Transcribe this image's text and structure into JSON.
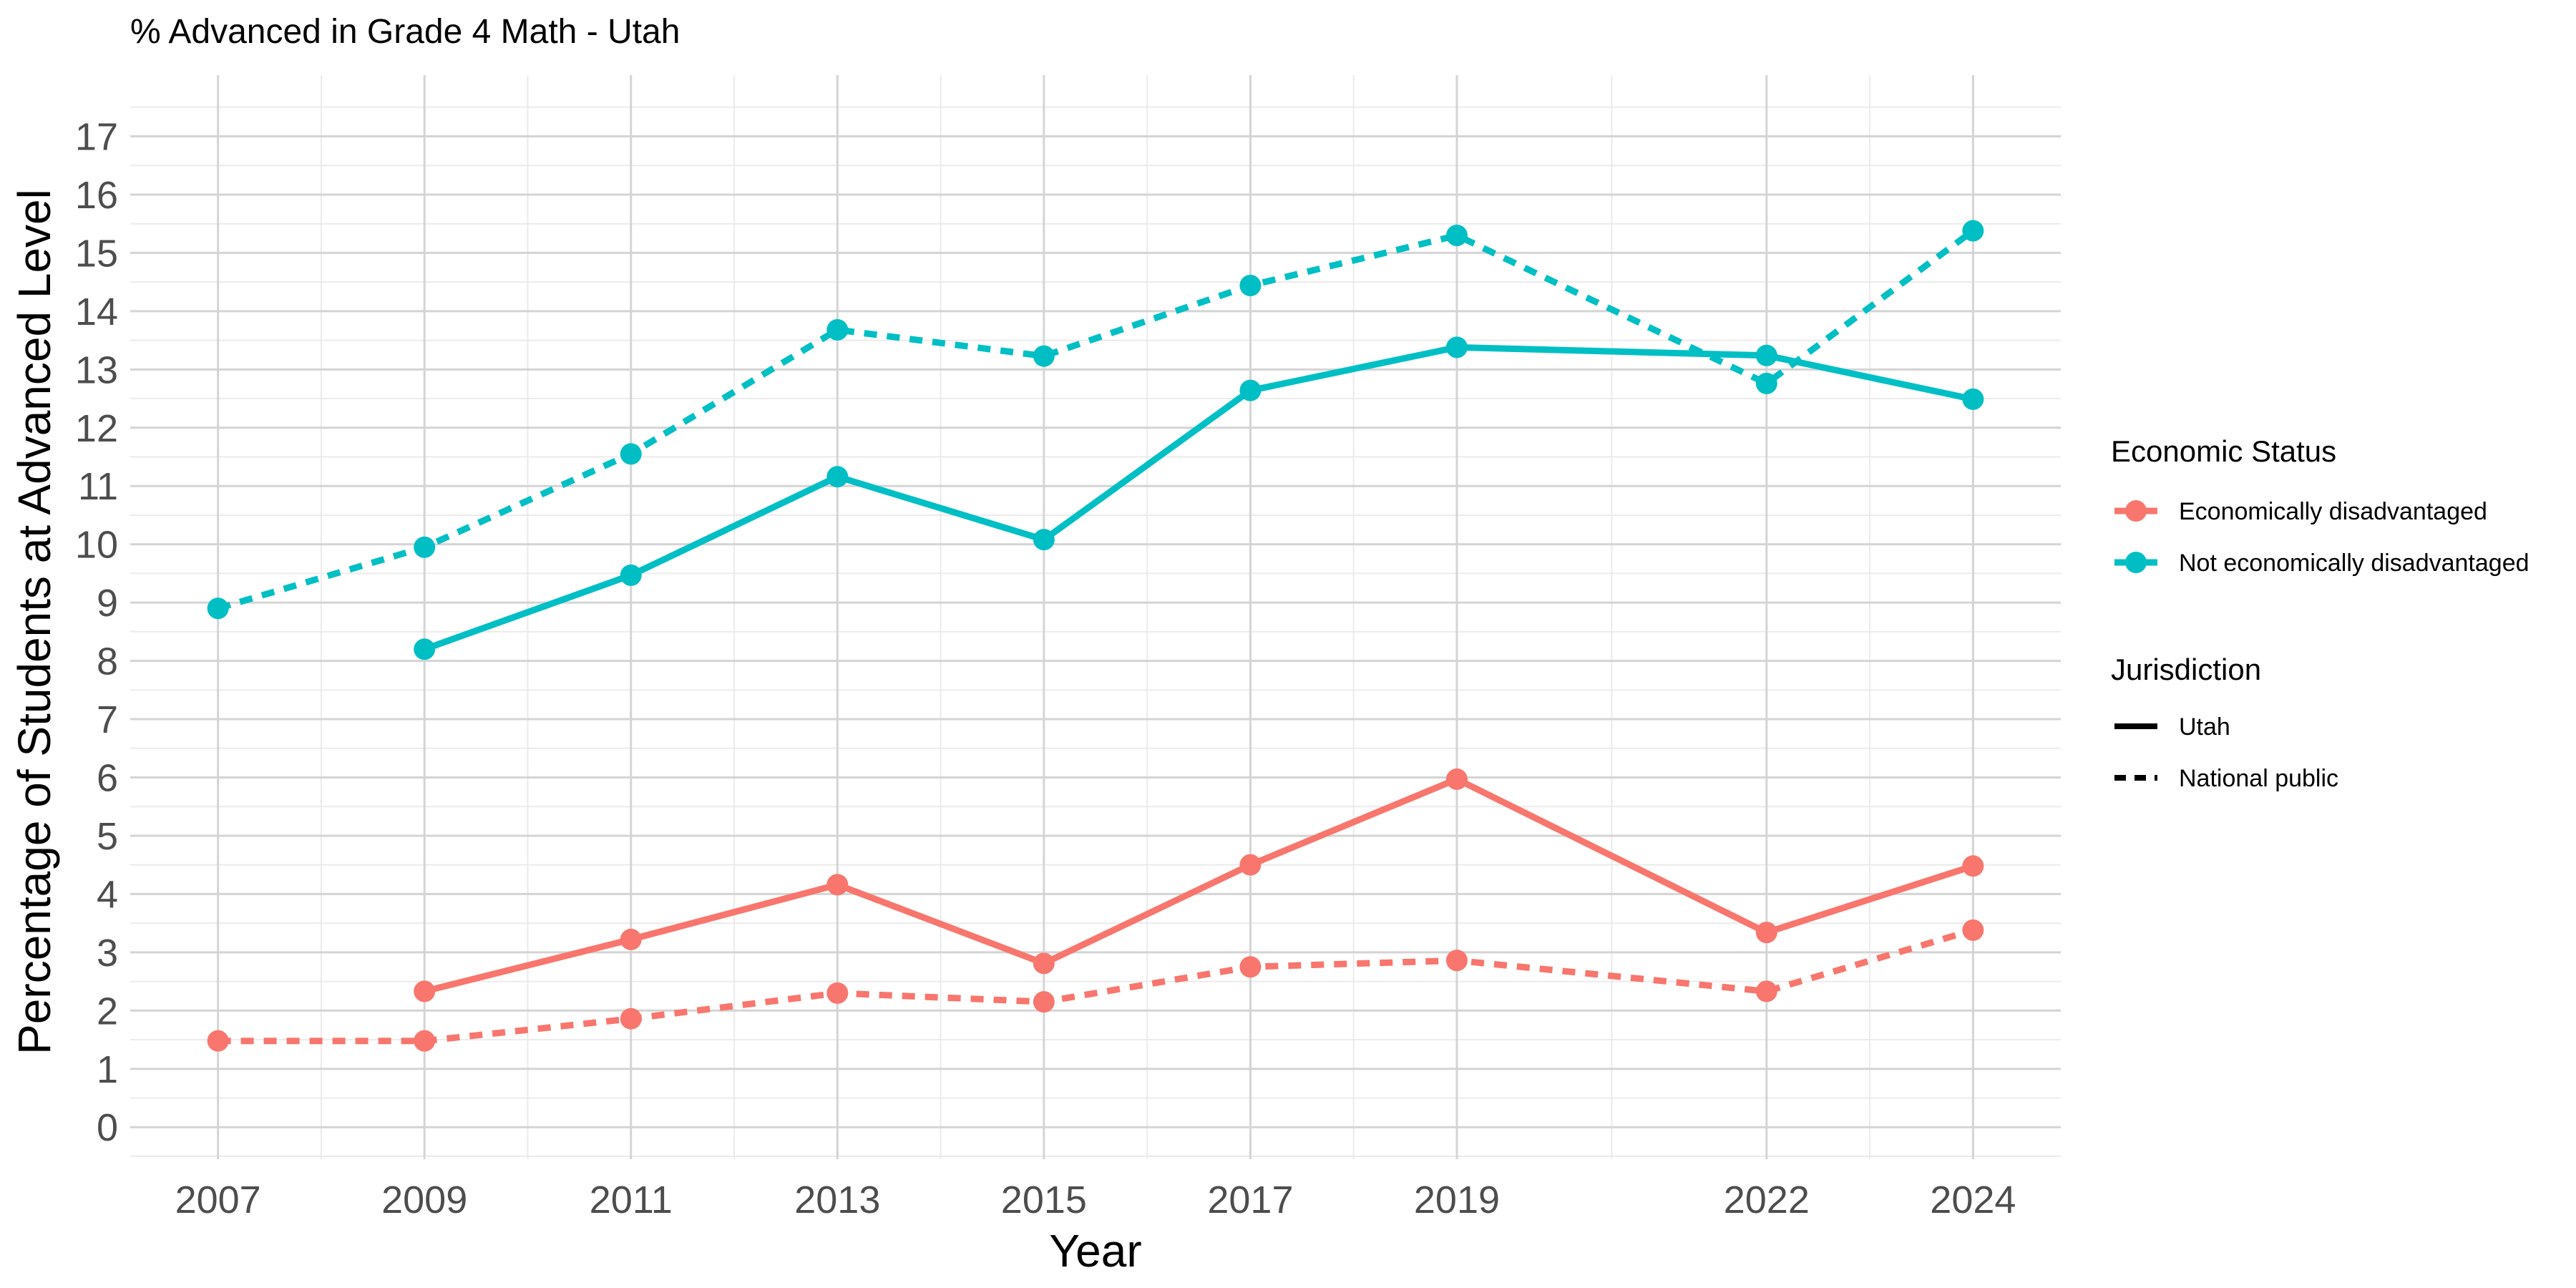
{
  "chart_data": {
    "type": "line",
    "title": "% Advanced in Grade 4 Math - Utah",
    "xlabel": "Year",
    "ylabel": "Percentage of Students at Advanced Level",
    "x_ticks": [
      "2007",
      "2009",
      "2011",
      "2013",
      "2015",
      "2017",
      "2019",
      "2022",
      "2024"
    ],
    "xlim": [
      2006.15,
      2024.85
    ],
    "ylim": [
      -0.55,
      18.05
    ],
    "y_ticks": [
      0,
      1,
      2,
      3,
      4,
      5,
      6,
      7,
      8,
      9,
      10,
      11,
      12,
      13,
      14,
      15,
      16,
      17
    ],
    "grid": true,
    "legend_position": "right",
    "colors": {
      "Economically disadvantaged": "#F8766D",
      "Not economically disadvantaged": "#00BFC4"
    },
    "series": [
      {
        "status": "Not economically disadvantaged",
        "jurisdiction": "National public",
        "x": [
          2007,
          2009,
          2011,
          2013,
          2015,
          2017,
          2019,
          2022,
          2024
        ],
        "y": [
          8.9,
          9.95,
          11.55,
          13.68,
          13.23,
          14.44,
          15.3,
          12.76,
          15.38
        ]
      },
      {
        "status": "Not economically disadvantaged",
        "jurisdiction": "Utah",
        "x": [
          2009,
          2011,
          2013,
          2015,
          2017,
          2019,
          2022,
          2024
        ],
        "y": [
          8.2,
          9.47,
          11.16,
          10.08,
          12.64,
          13.38,
          13.24,
          12.49
        ]
      },
      {
        "status": "Economically disadvantaged",
        "jurisdiction": "Utah",
        "x": [
          2009,
          2011,
          2013,
          2015,
          2017,
          2019,
          2022,
          2024
        ],
        "y": [
          2.33,
          3.22,
          4.16,
          2.81,
          4.5,
          5.97,
          3.34,
          4.48
        ]
      },
      {
        "status": "Economically disadvantaged",
        "jurisdiction": "National public",
        "x": [
          2007,
          2009,
          2011,
          2013,
          2015,
          2017,
          2019,
          2022,
          2024
        ],
        "y": [
          1.48,
          1.48,
          1.86,
          2.3,
          2.15,
          2.75,
          2.86,
          2.33,
          3.38
        ]
      }
    ],
    "legend": {
      "color_title": "Economic Status",
      "color_items": [
        "Economically disadvantaged",
        "Not economically disadvantaged"
      ],
      "linetype_title": "Jurisdiction",
      "linetype_items": [
        "Utah",
        "National public"
      ]
    }
  }
}
